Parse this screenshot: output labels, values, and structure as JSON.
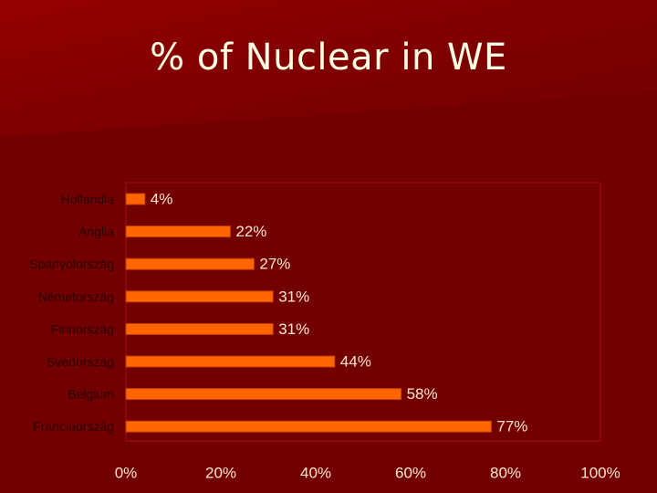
{
  "slide": {
    "title": "% of Nuclear in WE"
  },
  "colors": {
    "background": "#730000",
    "bar_fill": "#ff6600",
    "bar_stroke": "#c43c00",
    "plot_area_border": "#a01010"
  },
  "chart_data": {
    "type": "bar",
    "orientation": "horizontal",
    "categories": [
      "Hollandia",
      "Anglia",
      "Spanyolország",
      "Németország",
      "Finnország",
      "Svédország",
      "Belgium",
      "Franciaország"
    ],
    "values": [
      4,
      22,
      27,
      31,
      31,
      44,
      58,
      77
    ],
    "data_labels": [
      "4%",
      "22%",
      "27%",
      "31%",
      "31%",
      "44%",
      "58%",
      "77%"
    ],
    "xlim": [
      0,
      100
    ],
    "x_ticks": [
      "0%",
      "20%",
      "40%",
      "60%",
      "80%",
      "100%"
    ],
    "grid": false,
    "legend": "none"
  }
}
